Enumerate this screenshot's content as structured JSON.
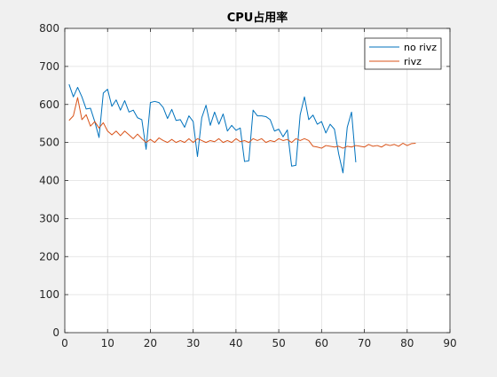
{
  "chart_data": {
    "type": "line",
    "title": "CPU占用率",
    "xlabel": "",
    "ylabel": "",
    "xlim": [
      0,
      90
    ],
    "ylim": [
      0,
      800
    ],
    "xticks": [
      0,
      10,
      20,
      30,
      40,
      50,
      60,
      70,
      80,
      90
    ],
    "yticks": [
      0,
      100,
      200,
      300,
      400,
      500,
      600,
      700,
      800
    ],
    "grid": true,
    "legend_position": "top-right",
    "series": [
      {
        "name": "no rivz",
        "color": "#0072bd",
        "x": [
          1,
          2,
          3,
          4,
          5,
          6,
          7,
          8,
          9,
          10,
          11,
          12,
          13,
          14,
          15,
          16,
          17,
          18,
          19,
          20,
          21,
          22,
          23,
          24,
          25,
          26,
          27,
          28,
          29,
          30,
          31,
          32,
          33,
          34,
          35,
          36,
          37,
          38,
          39,
          40,
          41,
          42,
          43,
          44,
          45,
          46,
          47,
          48,
          49,
          50,
          51,
          52,
          53,
          54,
          55,
          56,
          57,
          58,
          59,
          60,
          61,
          62,
          63,
          64,
          65,
          66,
          67,
          68
        ],
        "values": [
          653,
          620,
          645,
          620,
          588,
          590,
          555,
          513,
          630,
          640,
          595,
          612,
          585,
          610,
          580,
          585,
          565,
          560,
          482,
          605,
          608,
          605,
          592,
          563,
          587,
          558,
          560,
          540,
          570,
          555,
          463,
          565,
          598,
          545,
          580,
          548,
          575,
          530,
          545,
          532,
          538,
          450,
          452,
          585,
          570,
          570,
          568,
          560,
          530,
          535,
          515,
          533,
          438,
          440,
          573,
          620,
          560,
          572,
          548,
          555,
          525,
          548,
          535,
          470,
          420,
          540,
          580,
          448
        ]
      },
      {
        "name": "rivz",
        "color": "#d95319",
        "x": [
          1,
          2,
          3,
          4,
          5,
          6,
          7,
          8,
          9,
          10,
          11,
          12,
          13,
          14,
          15,
          16,
          17,
          18,
          19,
          20,
          21,
          22,
          23,
          24,
          25,
          26,
          27,
          28,
          29,
          30,
          31,
          32,
          33,
          34,
          35,
          36,
          37,
          38,
          39,
          40,
          41,
          42,
          43,
          44,
          45,
          46,
          47,
          48,
          49,
          50,
          51,
          52,
          53,
          54,
          55,
          56,
          57,
          58,
          59,
          60,
          61,
          62,
          63,
          64,
          65,
          66,
          67,
          68,
          69,
          70,
          71,
          72,
          73,
          74,
          75,
          76,
          77,
          78,
          79,
          80,
          81,
          82
        ],
        "values": [
          558,
          570,
          618,
          560,
          573,
          543,
          555,
          538,
          552,
          530,
          520,
          530,
          518,
          530,
          520,
          510,
          522,
          510,
          500,
          508,
          500,
          512,
          505,
          500,
          508,
          500,
          505,
          500,
          510,
          500,
          510,
          505,
          500,
          505,
          502,
          510,
          500,
          505,
          500,
          510,
          502,
          505,
          500,
          510,
          505,
          510,
          500,
          505,
          502,
          510,
          505,
          508,
          500,
          510,
          505,
          510,
          505,
          490,
          488,
          485,
          492,
          490,
          488,
          490,
          485,
          490,
          488,
          492,
          490,
          488,
          495,
          490,
          492,
          488,
          495,
          492,
          495,
          490,
          498,
          492,
          497,
          498
        ]
      }
    ]
  }
}
